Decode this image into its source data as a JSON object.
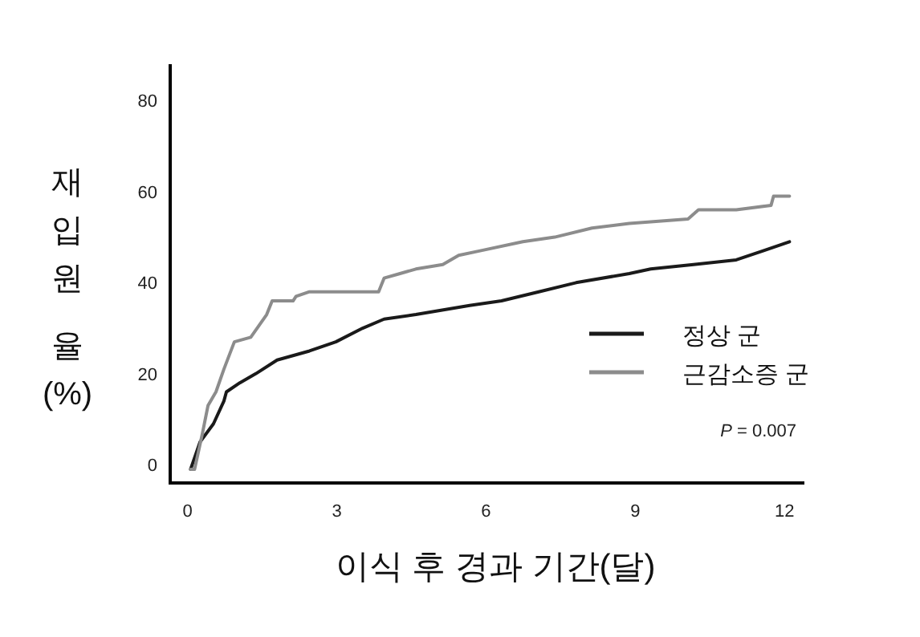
{
  "chart_data": {
    "type": "line",
    "xlabel": "이식 후 경과 기간(달)",
    "ylabel": "재입원율 (%)",
    "xlim": [
      -0.35,
      12.4
    ],
    "ylim": [
      -4,
      88
    ],
    "xticks": [
      0,
      3,
      6,
      9,
      12
    ],
    "yticks": [
      0,
      20,
      40,
      60,
      80
    ],
    "grid": false,
    "legend": "right",
    "marker": "none",
    "line_style": "solid",
    "annotations": [
      "*P* = 0.007"
    ],
    "series": [
      {
        "name": "정상 군",
        "color": "#1a1a1a",
        "x": [
          0.06,
          0.25,
          0.52,
          0.73,
          0.78,
          1.05,
          1.37,
          1.8,
          2.45,
          2.98,
          3.52,
          3.95,
          4.59,
          5.67,
          6.31,
          7.06,
          7.81,
          8.88,
          9.31,
          10.17,
          11.03,
          11.57,
          12.1
        ],
        "values": [
          -1,
          5,
          9,
          14,
          16,
          18,
          20,
          23,
          25,
          27,
          30,
          32,
          33,
          35,
          36,
          38,
          40,
          42,
          43,
          44,
          45,
          47,
          49
        ]
      },
      {
        "name": "근감소증 군",
        "color": "#8c8c8c",
        "x": [
          0.06,
          0.14,
          0.3,
          0.41,
          0.57,
          0.73,
          0.94,
          1.27,
          1.59,
          1.7,
          2.12,
          2.18,
          2.45,
          3.84,
          3.95,
          4.27,
          4.59,
          5.13,
          5.45,
          5.88,
          6.74,
          7.38,
          8.13,
          8.88,
          10.06,
          10.27,
          11.03,
          11.73,
          11.78,
          12.1
        ],
        "values": [
          -1,
          -1,
          7,
          13,
          16,
          21,
          27,
          28,
          33,
          36,
          36,
          37,
          38,
          38,
          41,
          42,
          43,
          44,
          46,
          47,
          49,
          50,
          52,
          53,
          54,
          56,
          56,
          57,
          59,
          59
        ]
      }
    ]
  }
}
